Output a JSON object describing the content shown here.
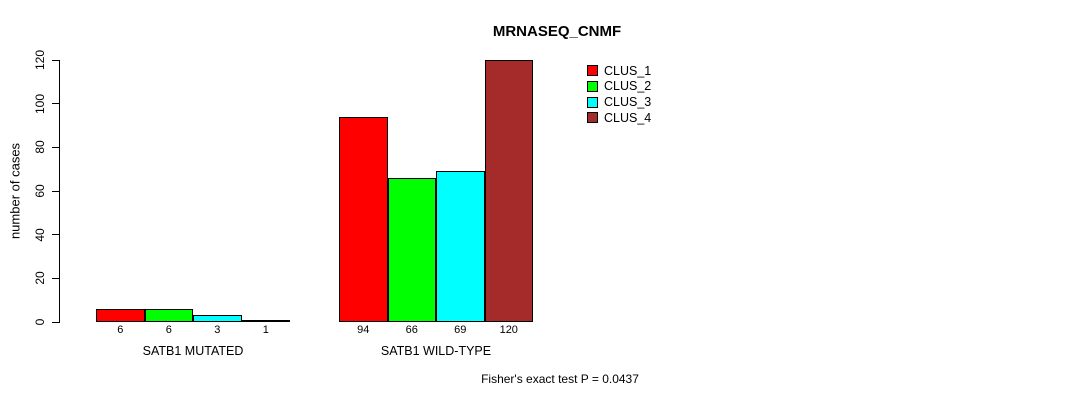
{
  "chart_data": {
    "type": "bar",
    "title": "MRNASEQ_CNMF",
    "xlabel": "",
    "ylabel": "number of cases",
    "ylim": [
      0,
      120
    ],
    "yticks": [
      0,
      20,
      40,
      60,
      80,
      100,
      120
    ],
    "grid": false,
    "legend_position": "top-right-inside",
    "categories": [
      "SATB1 MUTATED",
      "SATB1 WILD-TYPE"
    ],
    "series": [
      {
        "name": "CLUS_1",
        "color": "#FF0000",
        "values": [
          6,
          94
        ]
      },
      {
        "name": "CLUS_2",
        "color": "#00FF00",
        "values": [
          6,
          66
        ]
      },
      {
        "name": "CLUS_3",
        "color": "#00FFFF",
        "values": [
          3,
          69
        ]
      },
      {
        "name": "CLUS_4",
        "color": "#A52A2A",
        "values": [
          1,
          120
        ]
      }
    ],
    "bar_value_labels": [
      [
        6,
        6,
        3,
        1
      ],
      [
        94,
        66,
        69,
        120
      ]
    ],
    "annotation": "Fisher's exact test P = 0.0437",
    "bar_border_color": "#000000",
    "background_color": "#FFFFFF"
  }
}
